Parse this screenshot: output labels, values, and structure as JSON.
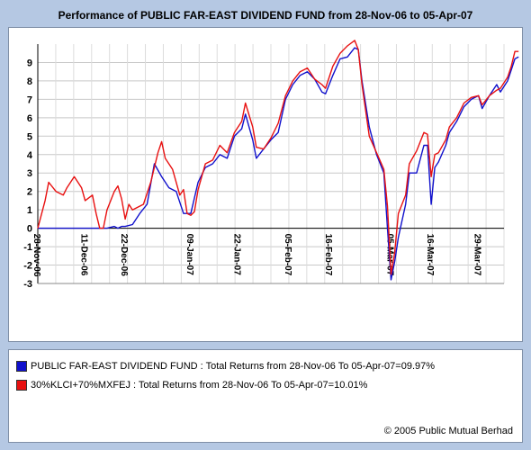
{
  "chart_data": {
    "type": "line",
    "title": "Performance of PUBLIC FAR-EAST DIVIDEND FUND from 28-Nov-06 to 05-Apr-07",
    "xlabel": "",
    "ylabel": "",
    "ylim": [
      -3,
      10
    ],
    "yticks": [
      "-3",
      "-2",
      "-1",
      "0",
      "1",
      "2",
      "3",
      "4",
      "5",
      "6",
      "7",
      "8",
      "9"
    ],
    "ytick_values": [
      -3,
      -2,
      -1,
      0,
      1,
      2,
      3,
      4,
      5,
      6,
      7,
      8,
      9
    ],
    "x_range": [
      0,
      128
    ],
    "xticks": [
      {
        "label": "28-Nov-06",
        "x": 0
      },
      {
        "label": "11-Dec-06",
        "x": 13
      },
      {
        "label": "22-Dec-06",
        "x": 24
      },
      {
        "label": "09-Jan-07",
        "x": 42
      },
      {
        "label": "22-Jan-07",
        "x": 55
      },
      {
        "label": "05-Feb-07",
        "x": 69
      },
      {
        "label": "16-Feb-07",
        "x": 80
      },
      {
        "label": "05-Mar-07",
        "x": 97
      },
      {
        "label": "16-Mar-07",
        "x": 108
      },
      {
        "label": "29-Mar-07",
        "x": 121
      }
    ],
    "grid": true,
    "legend_placement": "bottom",
    "series": [
      {
        "name": "PUBLIC FAR-EAST DIVIDEND FUND",
        "color": "#1010cc",
        "points": [
          [
            0,
            0
          ],
          [
            5,
            0
          ],
          [
            10,
            0
          ],
          [
            15,
            0
          ],
          [
            19,
            0
          ],
          [
            21,
            0.1
          ],
          [
            22,
            0
          ],
          [
            23,
            0.1
          ],
          [
            24,
            0.1
          ],
          [
            26,
            0.2
          ],
          [
            28,
            0.8
          ],
          [
            30,
            1.3
          ],
          [
            32,
            3.5
          ],
          [
            34,
            2.8
          ],
          [
            36,
            2.2
          ],
          [
            38,
            2
          ],
          [
            40,
            0.8
          ],
          [
            42,
            0.8
          ],
          [
            44,
            2.5
          ],
          [
            46,
            3.3
          ],
          [
            48,
            3.5
          ],
          [
            50,
            4
          ],
          [
            52,
            3.8
          ],
          [
            54,
            5
          ],
          [
            56,
            5.4
          ],
          [
            57,
            6.2
          ],
          [
            59,
            4.8
          ],
          [
            60,
            3.8
          ],
          [
            62,
            4.3
          ],
          [
            64,
            4.8
          ],
          [
            66,
            5.2
          ],
          [
            68,
            7
          ],
          [
            70,
            7.8
          ],
          [
            72,
            8.3
          ],
          [
            74,
            8.5
          ],
          [
            76,
            8.1
          ],
          [
            78,
            7.4
          ],
          [
            79,
            7.3
          ],
          [
            81,
            8.3
          ],
          [
            83,
            9.2
          ],
          [
            85,
            9.3
          ],
          [
            87,
            9.8
          ],
          [
            88,
            9.7
          ],
          [
            89,
            8
          ],
          [
            91,
            5.5
          ],
          [
            93,
            4
          ],
          [
            95,
            3
          ],
          [
            96,
            0
          ],
          [
            97,
            -2.8
          ],
          [
            98,
            -1.8
          ],
          [
            99,
            -0.5
          ],
          [
            101,
            1.3
          ],
          [
            102,
            3
          ],
          [
            104,
            3
          ],
          [
            106,
            4.5
          ],
          [
            107,
            4.5
          ],
          [
            108,
            1.3
          ],
          [
            109,
            3.3
          ],
          [
            110,
            3.6
          ],
          [
            112,
            4.5
          ],
          [
            113,
            5.2
          ],
          [
            115,
            5.8
          ],
          [
            117,
            6.6
          ],
          [
            119,
            7
          ],
          [
            121,
            7.2
          ],
          [
            122,
            6.5
          ],
          [
            124,
            7.2
          ],
          [
            126,
            7.8
          ],
          [
            127,
            7.4
          ],
          [
            129,
            8
          ],
          [
            130,
            8.6
          ],
          [
            131,
            9.2
          ],
          [
            132,
            9.3
          ]
        ]
      },
      {
        "name": "30%KLCI+70%MXFEJ",
        "color": "#e81010",
        "points": [
          [
            0,
            0
          ],
          [
            2,
            1.5
          ],
          [
            3,
            2.5
          ],
          [
            5,
            2
          ],
          [
            7,
            1.8
          ],
          [
            8,
            2.2
          ],
          [
            10,
            2.8
          ],
          [
            12,
            2.2
          ],
          [
            13,
            1.5
          ],
          [
            15,
            1.8
          ],
          [
            16,
            0.8
          ],
          [
            17,
            0
          ],
          [
            18,
            0
          ],
          [
            19,
            1
          ],
          [
            21,
            2
          ],
          [
            22,
            2.3
          ],
          [
            23,
            1.6
          ],
          [
            24,
            0.5
          ],
          [
            25,
            1.3
          ],
          [
            26,
            1
          ],
          [
            27,
            1.1
          ],
          [
            29,
            1.3
          ],
          [
            31,
            2.5
          ],
          [
            33,
            4.1
          ],
          [
            34,
            4.7
          ],
          [
            35,
            3.8
          ],
          [
            37,
            3.2
          ],
          [
            39,
            1.8
          ],
          [
            40,
            2.1
          ],
          [
            41,
            0.8
          ],
          [
            42,
            0.7
          ],
          [
            43,
            0.9
          ],
          [
            44,
            2.1
          ],
          [
            46,
            3.5
          ],
          [
            48,
            3.7
          ],
          [
            50,
            4.5
          ],
          [
            52,
            4.1
          ],
          [
            54,
            5.2
          ],
          [
            56,
            5.8
          ],
          [
            57,
            6.8
          ],
          [
            59,
            5.5
          ],
          [
            60,
            4.4
          ],
          [
            62,
            4.3
          ],
          [
            64,
            4.9
          ],
          [
            66,
            5.7
          ],
          [
            68,
            7.2
          ],
          [
            70,
            8
          ],
          [
            72,
            8.5
          ],
          [
            74,
            8.7
          ],
          [
            76,
            8.1
          ],
          [
            78,
            7.8
          ],
          [
            79,
            7.6
          ],
          [
            81,
            8.8
          ],
          [
            83,
            9.5
          ],
          [
            85,
            9.9
          ],
          [
            87,
            10.2
          ],
          [
            88,
            9.7
          ],
          [
            89,
            7.8
          ],
          [
            91,
            5
          ],
          [
            93,
            4.1
          ],
          [
            95,
            3.2
          ],
          [
            96,
            1.2
          ],
          [
            97,
            -2.5
          ],
          [
            98,
            -1.3
          ],
          [
            99,
            0.8
          ],
          [
            101,
            1.8
          ],
          [
            102,
            3.5
          ],
          [
            104,
            4.2
          ],
          [
            106,
            5.2
          ],
          [
            107,
            5.1
          ],
          [
            108,
            2.8
          ],
          [
            109,
            4
          ],
          [
            110,
            4.1
          ],
          [
            112,
            4.8
          ],
          [
            113,
            5.5
          ],
          [
            115,
            6
          ],
          [
            117,
            6.8
          ],
          [
            119,
            7.1
          ],
          [
            121,
            7.2
          ],
          [
            122,
            6.7
          ],
          [
            124,
            7.2
          ],
          [
            126,
            7.5
          ],
          [
            127,
            7.6
          ],
          [
            129,
            8.2
          ],
          [
            130,
            8.8
          ],
          [
            131,
            9.6
          ],
          [
            132,
            9.6
          ]
        ]
      }
    ]
  },
  "legend": {
    "fund_text": "PUBLIC FAR-EAST DIVIDEND FUND : Total Returns from 28-Nov-06 To 05-Apr-07=09.97%",
    "benchmark_text": "30%KLCI+70%MXFEJ : Total Returns from 28-Nov-06 To 05-Apr-07=10.01%",
    "fund_color": "#1010cc",
    "benchmark_color": "#e81010"
  },
  "copyright": "© 2005 Public Mutual Berhad"
}
